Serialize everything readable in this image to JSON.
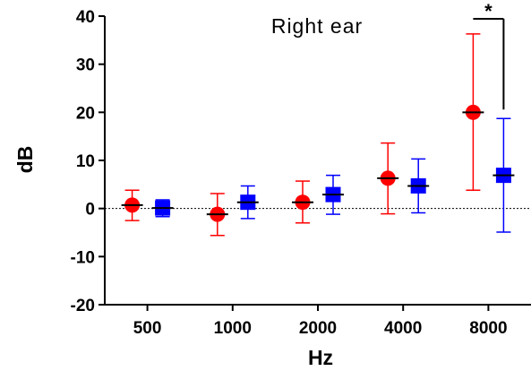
{
  "chart_data": {
    "type": "scatter",
    "title": "Right ear",
    "xlabel": "Hz",
    "ylabel": "dB",
    "categories": [
      "500",
      "1000",
      "2000",
      "4000",
      "8000"
    ],
    "ylim": [
      -20,
      40
    ],
    "yticks": [
      "-20",
      "-10",
      "0",
      "10",
      "20",
      "30",
      "40"
    ],
    "grid": false,
    "reference_line": 0,
    "series": [
      {
        "color": "#ff0000",
        "marker": "circle",
        "values": [
          0.7,
          -1.2,
          1.3,
          6.3,
          20.0
        ],
        "error_low": [
          -2.5,
          -5.6,
          -3.0,
          -1.1,
          3.8
        ],
        "error_high": [
          3.8,
          3.1,
          5.7,
          13.6,
          36.3
        ]
      },
      {
        "color": "#0000ff",
        "marker": "square",
        "values": [
          0.1,
          1.3,
          2.9,
          4.7,
          6.9
        ],
        "error_low": [
          -1.7,
          -2.1,
          -1.2,
          -0.9,
          -4.9
        ],
        "error_high": [
          1.8,
          4.7,
          6.9,
          10.3,
          18.7
        ]
      }
    ],
    "significance": [
      {
        "category": "8000",
        "label": "*"
      }
    ]
  }
}
